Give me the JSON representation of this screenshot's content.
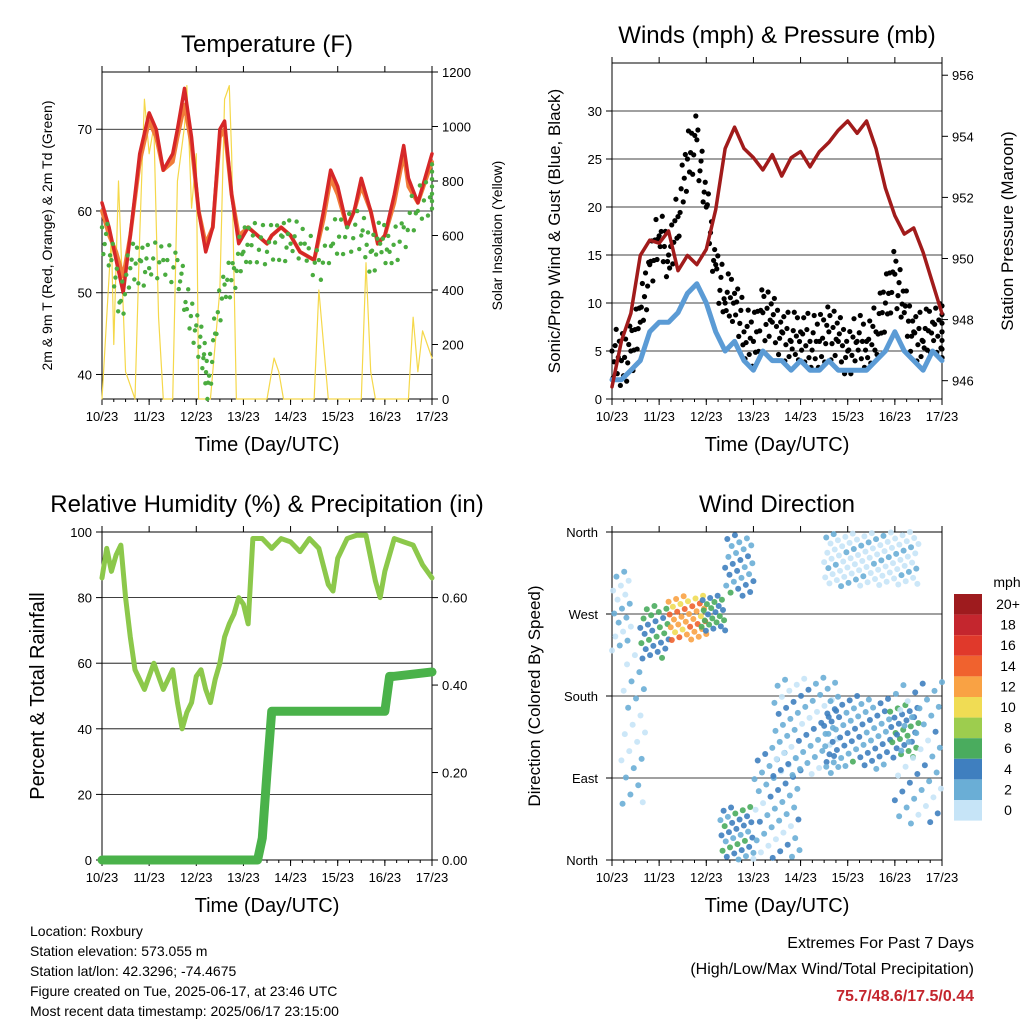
{
  "colors": {
    "temp2m": "#d62728",
    "temp9m": "#f07c3a",
    "dewpoint": "#4aac3f",
    "solar": "#f5d84a",
    "gust": "#000000",
    "sonic": "#5b9bd5",
    "pressure": "#a11b1b",
    "humidity": "#8cc84b",
    "rain": "#4ab24a"
  },
  "info": {
    "location": "Location: Roxbury",
    "elevation": "Station elevation: 573.055 m",
    "latlon": "Station lat/lon: 42.3296; -74.4675",
    "created": "Figure created on Tue, 2025-06-17, at 23:46 UTC",
    "latest": "Most recent data timestamp: 2025/06/17 23:15:00"
  },
  "extremes": {
    "title": "Extremes For Past 7 Days",
    "subtitle": "(High/Low/Max Wind/Total Precipitation)",
    "values": "75.7/48.6/17.5/0.44"
  },
  "chart_data": [
    {
      "type": "line",
      "title": "Temperature (F)",
      "xlabel": "Time (Day/UTC)",
      "ylabel": "2m & 9m T (Red, Orange) & 2m Td (Green)",
      "y2label": "Solar Insolation (Yellow)",
      "xticks": [
        "10/23",
        "11/23",
        "12/23",
        "13/23",
        "14/23",
        "15/23",
        "16/23",
        "17/23"
      ],
      "xlim": [
        0,
        7
      ],
      "ylim": [
        37,
        77
      ],
      "yticks": [
        40,
        50,
        60,
        70
      ],
      "y2lim": [
        0,
        1200
      ],
      "y2ticks": [
        0,
        200,
        400,
        600,
        800,
        1000,
        1200
      ],
      "series": [
        {
          "key": "temp2m",
          "x": [
            0,
            0.15,
            0.3,
            0.45,
            0.6,
            0.8,
            1.0,
            1.15,
            1.3,
            1.5,
            1.6,
            1.75,
            1.9,
            2.05,
            2.2,
            2.35,
            2.5,
            2.6,
            2.75,
            2.9,
            3.1,
            3.3,
            3.5,
            3.6,
            3.8,
            4.0,
            4.2,
            4.5,
            4.7,
            4.85,
            5.0,
            5.2,
            5.35,
            5.5,
            5.7,
            5.85,
            6.0,
            6.2,
            6.4,
            6.5,
            6.7,
            7.0
          ],
          "y": [
            61,
            58,
            54,
            50,
            57,
            67,
            72,
            70,
            65,
            67,
            70,
            75,
            69,
            60,
            55,
            58,
            70,
            71,
            62,
            56,
            58,
            57,
            56,
            57,
            58,
            57,
            55,
            54,
            60,
            65,
            63,
            58,
            60,
            64,
            60,
            56,
            57,
            62,
            68,
            64,
            61,
            67
          ]
        },
        {
          "key": "temp9m",
          "x": [
            0,
            0.15,
            0.3,
            0.45,
            0.6,
            0.8,
            1.0,
            1.15,
            1.3,
            1.5,
            1.6,
            1.75,
            1.9,
            2.05,
            2.2,
            2.35,
            2.5,
            2.6,
            2.75,
            2.9,
            3.1,
            3.3,
            3.5,
            3.6,
            3.8,
            4.0,
            4.2,
            4.5,
            4.7,
            4.85,
            5.0,
            5.2,
            5.35,
            5.5,
            5.7,
            5.85,
            6.0,
            6.2,
            6.4,
            6.5,
            6.7,
            7.0
          ],
          "y": [
            60,
            57,
            55,
            52,
            57,
            66,
            71,
            69,
            65,
            66,
            69,
            73,
            68,
            60,
            56,
            58,
            69,
            70,
            62,
            57,
            58,
            57,
            56,
            57,
            58,
            57,
            55,
            54,
            59,
            64,
            62,
            58,
            60,
            63,
            60,
            56,
            57,
            61,
            67,
            63,
            61,
            66
          ]
        },
        {
          "key": "dewpoint",
          "x": [
            0,
            0.2,
            0.4,
            0.6,
            0.8,
            1.0,
            1.3,
            1.6,
            1.8,
            2.0,
            2.15,
            2.25,
            2.4,
            2.6,
            2.8,
            3.0,
            3.2,
            3.5,
            3.8,
            4.0,
            4.3,
            4.6,
            4.9,
            5.2,
            5.5,
            5.7,
            5.9,
            6.1,
            6.4,
            6.7,
            7.0
          ],
          "y": [
            58,
            54,
            49,
            53,
            54,
            53,
            54,
            54,
            48,
            46,
            42,
            39,
            45,
            51,
            53,
            55,
            57,
            55,
            57,
            56,
            56,
            54,
            56,
            58,
            57,
            55,
            56,
            55,
            58,
            60,
            63
          ]
        },
        {
          "key": "solar",
          "x": [
            0,
            0.1,
            0.2,
            0.25,
            0.35,
            0.5,
            0.7,
            0.8,
            0.9,
            1.0,
            1.1,
            1.2,
            1.3,
            1.5,
            1.6,
            1.75,
            1.8,
            1.9,
            2.0,
            2.05,
            2.15,
            2.3,
            2.5,
            2.6,
            2.7,
            2.75,
            2.85,
            3.0,
            3.1,
            3.5,
            3.65,
            3.75,
            3.85,
            4.0,
            4.5,
            4.6,
            4.7,
            4.8,
            4.9,
            5.0,
            5.5,
            5.6,
            5.7,
            5.8,
            6.0,
            6.5,
            6.6,
            6.7,
            6.8,
            6.9,
            7.0
          ],
          "y": [
            0,
            300,
            600,
            200,
            800,
            100,
            0,
            600,
            1100,
            900,
            1000,
            300,
            0,
            0,
            800,
            1000,
            1150,
            700,
            900,
            0,
            0,
            0,
            400,
            1100,
            1150,
            900,
            0,
            0,
            0,
            0,
            150,
            100,
            0,
            0,
            0,
            400,
            200,
            0,
            0,
            0,
            0,
            500,
            100,
            0,
            0,
            0,
            300,
            100,
            250,
            200,
            150
          ]
        }
      ]
    },
    {
      "type": "line",
      "title": "Winds (mph) & Pressure (mb)",
      "xlabel": "Time (Day/UTC)",
      "ylabel": "Sonic/Prop Wind & Gust (Blue, Black)",
      "y2label": "Station Pressure (Maroon)",
      "xticks": [
        "10/23",
        "11/23",
        "12/23",
        "13/23",
        "14/23",
        "15/23",
        "16/23",
        "17/23"
      ],
      "xlim": [
        0,
        7
      ],
      "ylim": [
        0,
        35
      ],
      "yticks": [
        0,
        5,
        10,
        15,
        20,
        25,
        30
      ],
      "y2lim": [
        945.4,
        956.4
      ],
      "y2ticks": [
        946,
        948,
        950,
        952,
        954,
        956
      ],
      "series": [
        {
          "key": "pressure",
          "x": [
            0,
            0.2,
            0.4,
            0.6,
            0.8,
            1.0,
            1.2,
            1.4,
            1.6,
            1.8,
            2.0,
            2.2,
            2.4,
            2.6,
            2.8,
            3.0,
            3.2,
            3.4,
            3.6,
            3.8,
            4.0,
            4.2,
            4.4,
            4.6,
            4.8,
            5.0,
            5.2,
            5.4,
            5.6,
            5.8,
            6.0,
            6.2,
            6.4,
            6.6,
            6.8,
            7.0
          ],
          "y": [
            945.8,
            947.3,
            948.2,
            950.1,
            950.6,
            950.5,
            950.9,
            949.6,
            950.1,
            949.8,
            950.3,
            951.6,
            953.6,
            954.3,
            953.6,
            953.3,
            952.9,
            953.4,
            952.7,
            953.3,
            953.5,
            953.0,
            953.5,
            953.8,
            954.2,
            954.5,
            954.1,
            954.5,
            953.6,
            952.3,
            951.4,
            950.8,
            951.0,
            950.2,
            949.2,
            948.2
          ]
        },
        {
          "key": "gust",
          "x": [
            0,
            0.2,
            0.4,
            0.6,
            0.8,
            1.0,
            1.2,
            1.4,
            1.6,
            1.8,
            2.0,
            2.2,
            2.4,
            2.6,
            2.8,
            3.0,
            3.2,
            3.4,
            3.6,
            3.8,
            4.0,
            4.2,
            4.4,
            4.6,
            4.8,
            5.0,
            5.2,
            5.4,
            5.6,
            5.8,
            6.0,
            6.2,
            6.4,
            6.6,
            6.8,
            7.0
          ],
          "y": [
            5,
            4,
            5,
            8,
            14,
            17,
            15,
            19,
            25,
            27,
            20,
            14,
            10,
            11,
            7,
            6,
            9,
            8,
            7,
            6,
            7,
            6,
            6,
            7,
            6,
            5,
            6,
            6,
            7,
            10,
            13,
            9,
            7,
            6,
            8,
            7
          ]
        },
        {
          "key": "sonic",
          "x": [
            0,
            0.2,
            0.4,
            0.6,
            0.8,
            1.0,
            1.2,
            1.4,
            1.6,
            1.8,
            2.0,
            2.2,
            2.4,
            2.6,
            2.8,
            3.0,
            3.2,
            3.4,
            3.6,
            3.8,
            4.0,
            4.2,
            4.4,
            4.6,
            4.8,
            5.0,
            5.2,
            5.4,
            5.6,
            5.8,
            6.0,
            6.2,
            6.4,
            6.6,
            6.8,
            7.0
          ],
          "y": [
            2,
            2,
            3,
            4,
            7,
            8,
            8,
            9,
            11,
            12,
            10,
            7,
            5,
            6,
            4,
            3,
            5,
            4,
            4,
            3,
            4,
            3,
            3,
            4,
            3,
            3,
            3,
            3,
            4,
            5,
            7,
            5,
            4,
            3,
            5,
            4
          ]
        }
      ]
    },
    {
      "type": "line",
      "title": "Relative Humidity (%) & Precipitation (in)",
      "xlabel": "Time (Day/UTC)",
      "ylabel": "Percent & Total Rainfall",
      "xticks": [
        "10/23",
        "11/23",
        "12/23",
        "13/23",
        "14/23",
        "15/23",
        "16/23",
        "17/23"
      ],
      "xlim": [
        0,
        7
      ],
      "ylim": [
        0,
        100
      ],
      "yticks": [
        0,
        20,
        40,
        60,
        80,
        100
      ],
      "y2lim": [
        0,
        0.75
      ],
      "y2ticks": [
        "0.00",
        "0.20",
        "0.40",
        "0.60"
      ],
      "series": [
        {
          "key": "humidity",
          "x": [
            0,
            0.1,
            0.2,
            0.3,
            0.4,
            0.5,
            0.6,
            0.7,
            0.9,
            1.1,
            1.3,
            1.5,
            1.6,
            1.7,
            1.8,
            1.9,
            2.0,
            2.1,
            2.2,
            2.3,
            2.4,
            2.5,
            2.6,
            2.7,
            2.8,
            2.9,
            3.0,
            3.1,
            3.2,
            3.4,
            3.6,
            3.8,
            4.0,
            4.2,
            4.4,
            4.6,
            4.8,
            4.9,
            5.0,
            5.2,
            5.4,
            5.6,
            5.8,
            5.9,
            6.0,
            6.2,
            6.4,
            6.6,
            6.8,
            7.0
          ],
          "y": [
            86,
            95,
            88,
            93,
            96,
            80,
            68,
            58,
            52,
            60,
            52,
            58,
            48,
            40,
            45,
            48,
            56,
            58,
            52,
            48,
            55,
            60,
            68,
            72,
            75,
            80,
            78,
            72,
            98,
            98,
            95,
            98,
            97,
            94,
            98,
            95,
            84,
            82,
            92,
            98,
            99,
            99,
            85,
            80,
            88,
            98,
            97,
            96,
            90,
            86
          ]
        },
        {
          "key": "rain",
          "x": [
            0,
            3.3,
            3.4,
            3.5,
            3.6,
            3.7,
            4.0,
            5.0,
            6.0,
            6.1,
            6.2,
            7.0
          ],
          "y": [
            0,
            0,
            0.05,
            0.2,
            0.34,
            0.34,
            0.34,
            0.34,
            0.34,
            0.42,
            0.42,
            0.43
          ]
        }
      ]
    },
    {
      "type": "scatter",
      "title": "Wind Direction",
      "xlabel": "Time (Day/UTC)",
      "ylabel": "Direction (Colored By Speed)",
      "xticks": [
        "10/23",
        "11/23",
        "12/23",
        "13/23",
        "14/23",
        "15/23",
        "16/23",
        "17/23"
      ],
      "xlim": [
        0,
        7
      ],
      "ylim": [
        0,
        360
      ],
      "ycats": [
        "North",
        "East",
        "South",
        "West",
        "North"
      ],
      "legend_title": "mph",
      "legend": [
        "20+",
        "18",
        "16",
        "14",
        "12",
        "10",
        "8",
        "6",
        "4",
        "2",
        "0"
      ],
      "legend_colors": [
        "#9e1b1e",
        "#c4262e",
        "#e0392b",
        "#f0622e",
        "#f9a244",
        "#f0dc54",
        "#9dcd4e",
        "#4aac5e",
        "#3f7fbf",
        "#6aaed6",
        "#c6e4f7"
      ],
      "segments": [
        {
          "x0": 0.0,
          "x1": 0.4,
          "d0": 230,
          "d1": 320,
          "s": 2
        },
        {
          "x0": 0.2,
          "x1": 0.7,
          "d0": 60,
          "d1": 230,
          "s": 2
        },
        {
          "x0": 0.6,
          "x1": 1.2,
          "d0": 220,
          "d1": 280,
          "s": 6
        },
        {
          "x0": 1.2,
          "x1": 2.0,
          "d0": 240,
          "d1": 290,
          "s": 13
        },
        {
          "x0": 1.9,
          "x1": 2.4,
          "d0": 250,
          "d1": 290,
          "s": 6
        },
        {
          "x0": 2.4,
          "x1": 3.0,
          "d0": 290,
          "d1": 360,
          "s": 4
        },
        {
          "x0": 2.3,
          "x1": 3.0,
          "d0": 0,
          "d1": 60,
          "s": 5
        },
        {
          "x0": 3.0,
          "x1": 4.0,
          "d0": 0,
          "d1": 120,
          "s": 3
        },
        {
          "x0": 3.4,
          "x1": 4.8,
          "d0": 90,
          "d1": 200,
          "s": 3
        },
        {
          "x0": 4.5,
          "x1": 5.9,
          "d0": 100,
          "d1": 180,
          "s": 4
        },
        {
          "x0": 5.9,
          "x1": 6.5,
          "d0": 110,
          "d1": 170,
          "s": 6
        },
        {
          "x0": 6.0,
          "x1": 7.0,
          "d0": 40,
          "d1": 200,
          "s": 3
        },
        {
          "x0": 4.5,
          "x1": 6.5,
          "d0": 300,
          "d1": 360,
          "s": 1
        }
      ]
    }
  ]
}
